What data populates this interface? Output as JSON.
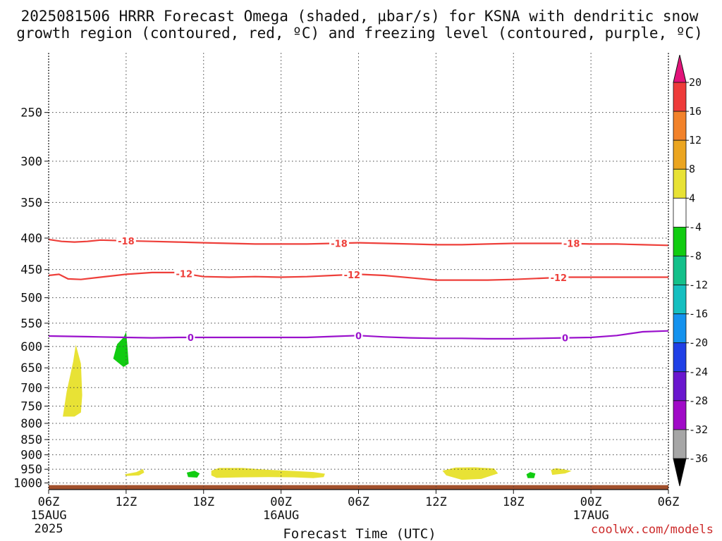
{
  "title_line1": "2025081506 HRRR Forecast Omega (shaded, µbar/s) for KSNA with dendritic snow",
  "title_line2": "growth region (contoured, red, ºC) and freezing level (contoured, purple, ºC)",
  "credit": "coolwx.com/models",
  "chart_data": {
    "type": "line",
    "title": "2025081506 HRRR Forecast Omega (shaded, µbar/s) for KSNA with dendritic snow growth region (contoured, red, ºC) and freezing level (contoured, purple, ºC)",
    "xlabel": "Forecast Time (UTC)",
    "ylabel": "",
    "x_unit": "forecast hour",
    "xlim": [
      0,
      48
    ],
    "ylim_hPa": [
      1025,
      200
    ],
    "y_ticks": [
      250,
      300,
      350,
      400,
      450,
      500,
      550,
      600,
      650,
      700,
      750,
      800,
      850,
      900,
      950,
      1000
    ],
    "x_ticks": [
      {
        "h": 0,
        "label": "06Z",
        "sub1": "15AUG",
        "sub2": "2025"
      },
      {
        "h": 6,
        "label": "12Z",
        "sub1": "",
        "sub2": ""
      },
      {
        "h": 12,
        "label": "18Z",
        "sub1": "",
        "sub2": ""
      },
      {
        "h": 18,
        "label": "00Z",
        "sub1": "16AUG",
        "sub2": ""
      },
      {
        "h": 24,
        "label": "06Z",
        "sub1": "",
        "sub2": ""
      },
      {
        "h": 30,
        "label": "12Z",
        "sub1": "",
        "sub2": ""
      },
      {
        "h": 36,
        "label": "18Z",
        "sub1": "",
        "sub2": ""
      },
      {
        "h": 42,
        "label": "00Z",
        "sub1": "17AUG",
        "sub2": ""
      },
      {
        "h": 48,
        "label": "06Z",
        "sub1": "",
        "sub2": ""
      }
    ],
    "grid": true,
    "contours": [
      {
        "label": "-18",
        "color": "#ee3f3a",
        "points": [
          [
            0,
            402
          ],
          [
            1,
            405
          ],
          [
            2,
            406
          ],
          [
            3,
            405
          ],
          [
            4,
            403
          ],
          [
            6,
            404
          ],
          [
            8,
            405
          ],
          [
            10,
            406
          ],
          [
            12,
            407
          ],
          [
            14,
            408
          ],
          [
            16,
            409
          ],
          [
            18,
            409
          ],
          [
            20,
            409
          ],
          [
            22,
            408
          ],
          [
            24,
            407
          ],
          [
            26,
            408
          ],
          [
            28,
            409
          ],
          [
            30,
            410
          ],
          [
            32,
            410
          ],
          [
            34,
            409
          ],
          [
            36,
            408
          ],
          [
            38,
            408
          ],
          [
            40,
            408
          ],
          [
            42,
            409
          ],
          [
            44,
            409
          ],
          [
            46,
            410
          ],
          [
            48,
            411
          ]
        ],
        "label_at": [
          6,
          22.5,
          40.5
        ]
      },
      {
        "label": "-12",
        "color": "#ee3f3a",
        "points": [
          [
            0,
            460
          ],
          [
            0.8,
            458
          ],
          [
            1.5,
            466
          ],
          [
            2.5,
            467
          ],
          [
            4,
            463
          ],
          [
            6,
            458
          ],
          [
            8,
            455
          ],
          [
            10,
            455
          ],
          [
            12,
            462
          ],
          [
            14,
            463
          ],
          [
            16,
            462
          ],
          [
            18,
            463
          ],
          [
            20,
            462
          ],
          [
            22,
            460
          ],
          [
            24,
            458
          ],
          [
            26,
            460
          ],
          [
            28,
            464
          ],
          [
            30,
            468
          ],
          [
            32,
            468
          ],
          [
            34,
            468
          ],
          [
            36,
            467
          ],
          [
            38,
            465
          ],
          [
            40,
            463
          ],
          [
            42,
            463
          ],
          [
            44,
            463
          ],
          [
            46,
            463
          ],
          [
            48,
            463
          ]
        ],
        "label_at": [
          10.5,
          23.5,
          39.5
        ]
      },
      {
        "label": "0",
        "color": "#9a10cc",
        "points": [
          [
            0,
            577
          ],
          [
            2,
            578
          ],
          [
            4,
            579
          ],
          [
            6,
            580
          ],
          [
            8,
            581
          ],
          [
            10,
            580
          ],
          [
            12,
            580
          ],
          [
            14,
            580
          ],
          [
            16,
            580
          ],
          [
            18,
            580
          ],
          [
            20,
            580
          ],
          [
            22,
            578
          ],
          [
            24,
            576
          ],
          [
            26,
            579
          ],
          [
            28,
            581
          ],
          [
            30,
            582
          ],
          [
            32,
            582
          ],
          [
            34,
            583
          ],
          [
            36,
            583
          ],
          [
            38,
            582
          ],
          [
            40,
            581
          ],
          [
            42,
            580
          ],
          [
            44,
            576
          ],
          [
            46,
            568
          ],
          [
            48,
            566
          ]
        ],
        "label_at": [
          11,
          24,
          40
        ]
      }
    ],
    "omega_regions": [
      {
        "value_range": [
          -8,
          -4
        ],
        "color": "#11cc11",
        "points": [
          [
            5.0,
            628
          ],
          [
            5.3,
            595
          ],
          [
            5.8,
            580
          ],
          [
            6.0,
            568
          ],
          [
            6.1,
            600
          ],
          [
            6.2,
            640
          ],
          [
            5.8,
            648
          ]
        ]
      },
      {
        "value_range": [
          4,
          8
        ],
        "color": "#e8e235",
        "points": [
          [
            1.1,
            780
          ],
          [
            1.4,
            710
          ],
          [
            1.9,
            635
          ],
          [
            2.1,
            596
          ],
          [
            2.5,
            640
          ],
          [
            2.6,
            720
          ],
          [
            2.5,
            768
          ],
          [
            2.0,
            780
          ]
        ]
      },
      {
        "value_range": [
          4,
          8
        ],
        "color": "#e8e235",
        "points": [
          [
            5.9,
            968
          ],
          [
            6.8,
            960
          ],
          [
            7.3,
            949
          ],
          [
            7.4,
            962
          ],
          [
            7.0,
            972
          ],
          [
            6.0,
            974
          ]
        ]
      },
      {
        "value_range": [
          -8,
          -4
        ],
        "color": "#11cc11",
        "points": [
          [
            10.7,
            962
          ],
          [
            11.3,
            955
          ],
          [
            11.7,
            965
          ],
          [
            11.5,
            980
          ],
          [
            10.8,
            978
          ]
        ]
      },
      {
        "value_range": [
          4,
          8
        ],
        "color": "#e8e235",
        "points": [
          [
            12.6,
            955
          ],
          [
            13.2,
            945
          ],
          [
            15,
            945
          ],
          [
            17,
            952
          ],
          [
            19,
            956
          ],
          [
            20.5,
            960
          ],
          [
            21.4,
            966
          ],
          [
            21.3,
            978
          ],
          [
            20.5,
            982
          ],
          [
            19,
            979
          ],
          [
            17,
            978
          ],
          [
            15,
            979
          ],
          [
            13,
            981
          ],
          [
            12.6,
            972
          ]
        ]
      },
      {
        "value_range": [
          4,
          8
        ],
        "color": "#e8e235",
        "points": [
          [
            30.5,
            955
          ],
          [
            31.5,
            944
          ],
          [
            33,
            943
          ],
          [
            34.5,
            947
          ],
          [
            34.8,
            965
          ],
          [
            33.5,
            985
          ],
          [
            32,
            988
          ],
          [
            30.8,
            972
          ]
        ]
      },
      {
        "value_range": [
          -8,
          -4
        ],
        "color": "#11cc11",
        "points": [
          [
            37.0,
            968
          ],
          [
            37.3,
            960
          ],
          [
            37.7,
            965
          ],
          [
            37.6,
            982
          ],
          [
            37.1,
            982
          ]
        ]
      },
      {
        "value_range": [
          4,
          8
        ],
        "color": "#e8e235",
        "points": [
          [
            38.9,
            952
          ],
          [
            39.3,
            946
          ],
          [
            39.9,
            950
          ],
          [
            40.5,
            956
          ],
          [
            40.0,
            965
          ],
          [
            39.0,
            970
          ]
        ]
      }
    ],
    "terrain": {
      "color": "#a2502c",
      "top_hPa": 1008
    },
    "colorbar": {
      "labels": [
        "20",
        "16",
        "12",
        "8",
        "4",
        "-4",
        "-8",
        "-12",
        "-16",
        "-20",
        "-24",
        "-28",
        "-32",
        "-36"
      ],
      "colors": [
        "#e2137a",
        "#ee3b3a",
        "#f2822a",
        "#eba520",
        "#e8e235",
        "#ffffff",
        "#11cc11",
        "#13c08a",
        "#15bfc0",
        "#1492ee",
        "#2040e6",
        "#6a16ce",
        "#a00ac7",
        "#a6a6a6",
        "#000000"
      ]
    }
  }
}
